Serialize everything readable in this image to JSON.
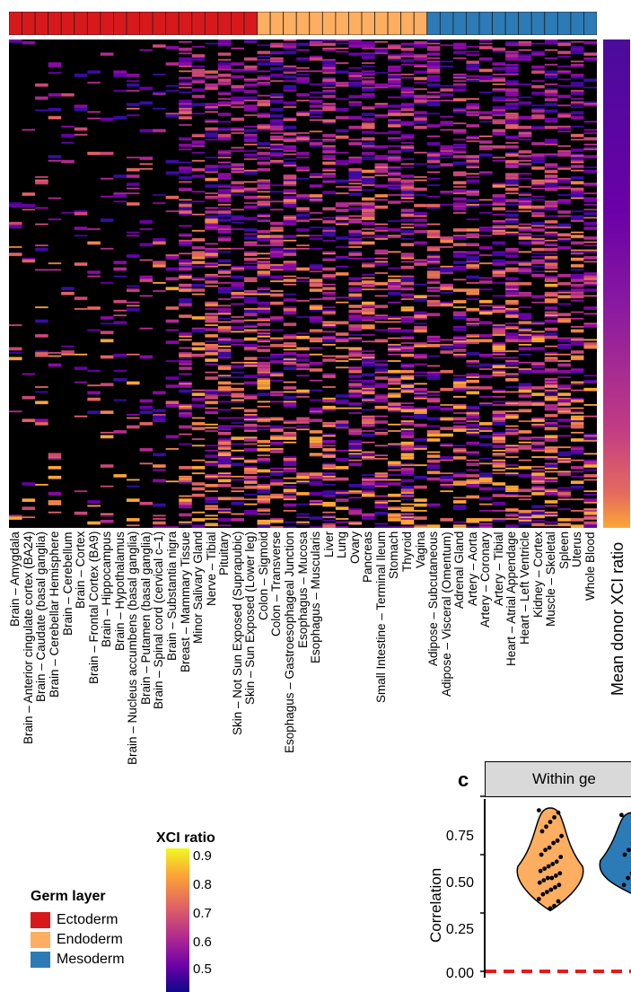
{
  "chart_data": [
    {
      "type": "heatmap",
      "germ_layer_colors": {
        "Ectoderm": "#d7191c",
        "Endoderm": "#fdae61",
        "Mesoderm": "#2c7bb6"
      },
      "columns": [
        {
          "name": "Brain – Amygdala",
          "germ": "Ectoderm"
        },
        {
          "name": "Brain – Anterior cingulate cortex (BA24)",
          "germ": "Ectoderm"
        },
        {
          "name": "Brain – Caudate (basal ganglia)",
          "germ": "Ectoderm"
        },
        {
          "name": "Brain – Cerebellar Hemisphere",
          "germ": "Ectoderm"
        },
        {
          "name": "Brain – Cerebellum",
          "germ": "Ectoderm"
        },
        {
          "name": "Brain – Cortex",
          "germ": "Ectoderm"
        },
        {
          "name": "Brain – Frontal Cortex (BA9)",
          "germ": "Ectoderm"
        },
        {
          "name": "Brain – Hippocampus",
          "germ": "Ectoderm"
        },
        {
          "name": "Brain – Hypothalamus",
          "germ": "Ectoderm"
        },
        {
          "name": "Brain – Nucleus accumbens (basal ganglia)",
          "germ": "Ectoderm"
        },
        {
          "name": "Brain – Putamen (basal ganglia)",
          "germ": "Ectoderm"
        },
        {
          "name": "Brain – Spinal cord (cervical c–1)",
          "germ": "Ectoderm"
        },
        {
          "name": "Brain – Substantia nigra",
          "germ": "Ectoderm"
        },
        {
          "name": "Breast – Mammary Tissue",
          "germ": "Ectoderm"
        },
        {
          "name": "Minor Salivary Gland",
          "germ": "Ectoderm"
        },
        {
          "name": "Nerve – Tibial",
          "germ": "Ectoderm"
        },
        {
          "name": "Pituitary",
          "germ": "Ectoderm"
        },
        {
          "name": "Skin – Not Sun Exposed (Suprapubic)",
          "germ": "Ectoderm"
        },
        {
          "name": "Skin – Sun Exposed (Lower leg)",
          "germ": "Ectoderm"
        },
        {
          "name": "Colon – Sigmoid",
          "germ": "Endoderm"
        },
        {
          "name": "Colon – Transverse",
          "germ": "Endoderm"
        },
        {
          "name": "Esophagus – Gastroesophageal Junction",
          "germ": "Endoderm"
        },
        {
          "name": "Esophagus – Mucosa",
          "germ": "Endoderm"
        },
        {
          "name": "Esophagus – Muscularis",
          "germ": "Endoderm"
        },
        {
          "name": "Liver",
          "germ": "Endoderm"
        },
        {
          "name": "Lung",
          "germ": "Endoderm"
        },
        {
          "name": "Ovary",
          "germ": "Endoderm"
        },
        {
          "name": "Pancreas",
          "germ": "Endoderm"
        },
        {
          "name": "Small Intestine – Terminal Ileum",
          "germ": "Endoderm"
        },
        {
          "name": "Stomach",
          "germ": "Endoderm"
        },
        {
          "name": "Thyroid",
          "germ": "Endoderm"
        },
        {
          "name": "Vagina",
          "germ": "Endoderm"
        },
        {
          "name": "Adipose – Subcutaneous",
          "germ": "Mesoderm"
        },
        {
          "name": "Adipose – Visceral (Omentum)",
          "germ": "Mesoderm"
        },
        {
          "name": "Adrenal Gland",
          "germ": "Mesoderm"
        },
        {
          "name": "Artery – Aorta",
          "germ": "Mesoderm"
        },
        {
          "name": "Artery – Coronary",
          "germ": "Mesoderm"
        },
        {
          "name": "Artery – Tibial",
          "germ": "Mesoderm"
        },
        {
          "name": "Heart – Atrial Appendage",
          "germ": "Mesoderm"
        },
        {
          "name": "Heart – Left Ventricle",
          "germ": "Mesoderm"
        },
        {
          "name": "Kidney – Cortex",
          "germ": "Mesoderm"
        },
        {
          "name": "Muscle – Skeletal",
          "germ": "Mesoderm"
        },
        {
          "name": "Spleen",
          "germ": "Mesoderm"
        },
        {
          "name": "Uterus",
          "germ": "Mesoderm"
        },
        {
          "name": "Whole Blood",
          "germ": "Mesoderm"
        }
      ],
      "color_scale_label": "XCI ratio",
      "color_scale_ticks": [
        "0.9",
        "0.8",
        "0.7",
        "0.6",
        "0.5"
      ],
      "mean_bar_label": "Mean donor XCI ratio",
      "legend": {
        "title": "Germ layer",
        "items": [
          {
            "label": "Ectoderm",
            "color": "#d7191c"
          },
          {
            "label": "Endoderm",
            "color": "#fdae61"
          },
          {
            "label": "Mesoderm",
            "color": "#2c7bb6"
          }
        ]
      }
    },
    {
      "type": "violin",
      "panel_letter": "c",
      "strip_label": "Within ge",
      "ylabel": "Correlation",
      "ylim": [
        0,
        0.8
      ],
      "yticks": [
        "0.75",
        "0.50",
        "0.25",
        "0.00"
      ],
      "series": [
        {
          "color": "#fdae61",
          "points": [
            0.69,
            0.68,
            0.66,
            0.64,
            0.62,
            0.6,
            0.58,
            0.56,
            0.55,
            0.53,
            0.52,
            0.5,
            0.49,
            0.47,
            0.46,
            0.45,
            0.44,
            0.43,
            0.42,
            0.41,
            0.4,
            0.4,
            0.39,
            0.38,
            0.37,
            0.36,
            0.35,
            0.34,
            0.33,
            0.31,
            0.3,
            0.28,
            0.27
          ]
        },
        {
          "color": "#2c7bb6",
          "points": [
            0.67,
            0.62,
            0.58,
            0.55,
            0.52,
            0.5,
            0.48,
            0.46,
            0.44,
            0.42,
            0.4,
            0.37,
            0.34
          ]
        }
      ],
      "reference_line": 0.0
    }
  ]
}
